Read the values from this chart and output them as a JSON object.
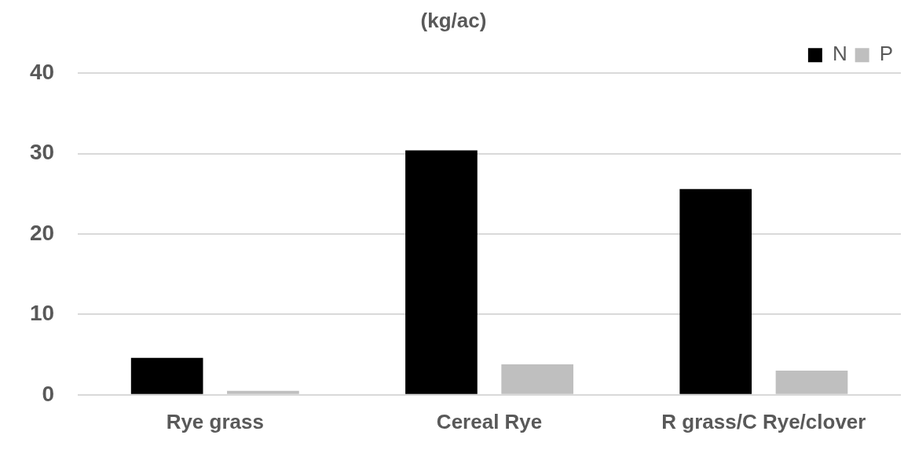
{
  "chart_data": {
    "type": "bar",
    "title": "(kg/ac)",
    "categories": [
      "Rye grass",
      "Cereal Rye",
      "R grass/C Rye/clover"
    ],
    "series": [
      {
        "name": "N",
        "color": "#000000",
        "values": [
          4.6,
          30.4,
          25.6
        ]
      },
      {
        "name": "P",
        "color": "#bfbfbf",
        "values": [
          0.5,
          3.8,
          3.0
        ]
      }
    ],
    "ylim": [
      0,
      40
    ],
    "yticks": [
      0,
      10,
      20,
      30,
      40
    ],
    "grid": "y",
    "legend": "top right"
  }
}
